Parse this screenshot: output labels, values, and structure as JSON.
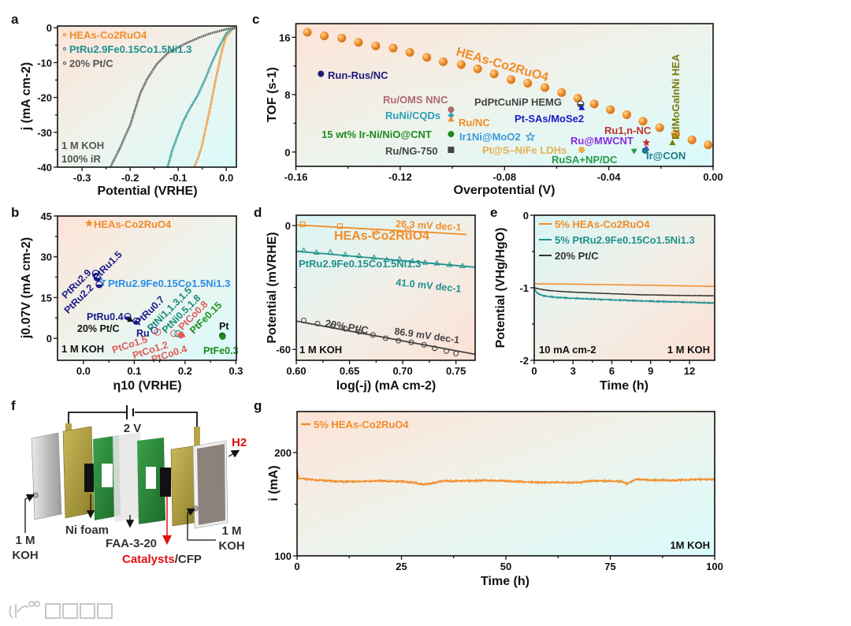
{
  "panel_labels": [
    "a",
    "b",
    "c",
    "d",
    "e",
    "f",
    "g"
  ],
  "chart_data": [
    {
      "id": "a",
      "type": "line",
      "title": "",
      "xlabel": "Potential (VRHE)",
      "ylabel": "j (mA cm-2)",
      "xlim": [
        -0.351,
        0.021
      ],
      "ylim": [
        -40,
        0.5
      ],
      "xticks": [
        -0.3,
        -0.2,
        -0.1,
        0.0
      ],
      "xtick_labels": [
        "-0.3",
        "-0.2",
        "-0.1",
        "0.0"
      ],
      "yticks": [
        0,
        -10,
        -20,
        -30,
        -40
      ],
      "ytick_labels": [
        "0",
        "-10",
        "-20",
        "-30",
        "-40"
      ],
      "legend": "top-left",
      "series": [
        {
          "name": "HEAs-Co2RuO4",
          "color": "#f28c28",
          "x": [
            0.018,
            0.01,
            0.0,
            -0.008,
            -0.016,
            -0.025,
            -0.035,
            -0.043,
            -0.051,
            -0.059,
            -0.067
          ],
          "y": [
            0,
            -0.8,
            -2.5,
            -6,
            -11,
            -17,
            -24,
            -29,
            -34,
            -37.5,
            -40
          ]
        },
        {
          "name": "PtRu2.9Fe0.15Co1.5Ni1.3",
          "color": "#1f9090",
          "x": [
            0.018,
            0.01,
            0.0,
            -0.016,
            -0.03,
            -0.044,
            -0.06,
            -0.078,
            -0.09,
            -0.1,
            -0.112,
            -0.122
          ],
          "y": [
            0,
            -0.5,
            -1.6,
            -5.8,
            -10,
            -14.8,
            -19.5,
            -23.7,
            -27,
            -30.5,
            -35,
            -40
          ]
        },
        {
          "name": "20% Pt/C",
          "color": "#555555",
          "x": [
            0.018,
            0.0,
            -0.013,
            -0.035,
            -0.056,
            -0.08,
            -0.1,
            -0.122,
            -0.145,
            -0.165,
            -0.178,
            -0.187,
            -0.2,
            -0.21,
            -0.22,
            -0.241
          ],
          "y": [
            0,
            -0.4,
            -0.9,
            -1.7,
            -2.8,
            -4.2,
            -5.6,
            -7.3,
            -10.5,
            -14.8,
            -18.5,
            -22.2,
            -28,
            -31,
            -34.2,
            -40
          ]
        }
      ],
      "annotations": [
        "1 M KOH",
        "100% iR"
      ]
    },
    {
      "id": "c",
      "type": "scatter",
      "title": "",
      "xlabel": "Overpotential (V)",
      "ylabel": "TOF (s-1)",
      "xlim": [
        -0.16,
        0.0
      ],
      "ylim": [
        -2,
        17.9
      ],
      "xticks": [
        -0.16,
        -0.12,
        -0.08,
        -0.04,
        0.0
      ],
      "xtick_labels": [
        "-0.16",
        "-0.12",
        "-0.08",
        "-0.04",
        "0.00"
      ],
      "yticks": [
        0,
        8,
        16
      ],
      "ytick_labels": [
        "0",
        "8",
        "16"
      ],
      "series": [
        {
          "name": "HEAs-Co2RuO4",
          "color": "#f28c28",
          "x": [
            -0.1556,
            -0.1491,
            -0.1424,
            -0.136,
            -0.1294,
            -0.1227,
            -0.1163,
            -0.1098,
            -0.1035,
            -0.0966,
            -0.0903,
            -0.084,
            -0.0775,
            -0.0711,
            -0.0645,
            -0.0581,
            -0.0519,
            -0.0456,
            -0.0394,
            -0.0331,
            -0.0269,
            -0.0205,
            -0.0144,
            -0.0081,
            -0.0019
          ],
          "y": [
            16.7,
            16.2,
            15.9,
            15.3,
            14.8,
            14.5,
            13.9,
            13.2,
            12.6,
            12.2,
            11.6,
            10.9,
            10.1,
            9.6,
            9.0,
            8.3,
            7.5,
            6.7,
            5.9,
            5.2,
            4.3,
            3.4,
            2.5,
            1.7,
            1.0
          ]
        }
      ],
      "points": [
        {
          "label": "Run-Rus/NC",
          "x": -0.1504,
          "y": 10.9,
          "color": "#1a1a7a",
          "marker": "circle"
        },
        {
          "label": "Ru/OMS NNC",
          "x": -0.1005,
          "y": 5.9,
          "color": "#b06a70",
          "marker": "circle"
        },
        {
          "label": "RuNi/CQDs",
          "x": -0.1005,
          "y": 5.1,
          "color": "#2aa0b8",
          "marker": "diamond"
        },
        {
          "label": "Ru/NC",
          "x": -0.1005,
          "y": 4.6,
          "color": "#f28c28",
          "marker": "triangle"
        },
        {
          "label": "15 wt% Ir-Ni/NiO@CNT",
          "x": -0.1005,
          "y": 2.5,
          "color": "#1e8a1e",
          "marker": "circle"
        },
        {
          "label": "Ru/NG-750",
          "x": -0.1005,
          "y": 0.3,
          "color": "#444444",
          "marker": "square"
        },
        {
          "label": "Ir1Ni@MoO2",
          "x": -0.0701,
          "y": 2.1,
          "color": "#3a9ad9",
          "marker": "star-open"
        },
        {
          "label": "PdPtCuNiP HEMG",
          "x": -0.0508,
          "y": 6.7,
          "color": "#444444",
          "marker": "half"
        },
        {
          "label": "Pt-SAs/MoSe2",
          "x": -0.0504,
          "y": 6.2,
          "color": "#1a1acc",
          "marker": "triangle"
        },
        {
          "label": "Pt@S–NiFe LDHs",
          "x": -0.0504,
          "y": 0.3,
          "color": "#e8b050",
          "marker": "circle"
        },
        {
          "label": "RuSA+NP/DC",
          "x": -0.0303,
          "y": 0.1,
          "color": "#2a9a4a",
          "marker": "triangle-down"
        },
        {
          "label": "Ru1,n-NC",
          "x": -0.0256,
          "y": 1.3,
          "color": "#c0302a",
          "marker": "star"
        },
        {
          "label": "Ru@MWCNT",
          "x": -0.0256,
          "y": 0.55,
          "color": "#8a2ae0",
          "marker": "triangle"
        },
        {
          "label": "Ir@CON",
          "x": -0.0261,
          "y": 0.2,
          "color": "#1a7a8a",
          "marker": "circle"
        },
        {
          "label": "PdMoGaInNi HEA",
          "x": -0.0156,
          "y": 1.3,
          "color": "#7a7a10",
          "marker": "triangle"
        }
      ]
    },
    {
      "id": "b",
      "type": "scatter",
      "title": "",
      "xlabel": "η10 (VRHE)",
      "ylabel": "j0.07V (mA cm-2)",
      "xlim": [
        -0.051,
        0.301
      ],
      "ylim": [
        -8.1,
        45
      ],
      "xticks": [
        0.0,
        0.1,
        0.2,
        0.3
      ],
      "xtick_labels": [
        "0.0",
        "0.1",
        "0.2",
        "0.3"
      ],
      "yticks": [
        0,
        15,
        30,
        45
      ],
      "ytick_labels": [
        "0",
        "15",
        "30",
        "45"
      ],
      "points": [
        {
          "label": "HEAs-Co2RuO4",
          "x": 0.011,
          "y": 42.3,
          "color": "#f28c28",
          "marker": "star"
        },
        {
          "label": "PtRu2.9Fe0.15Co1.5Ni1.3",
          "x": 0.035,
          "y": 20.8,
          "color": "#2a8ee8",
          "marker": "star-open"
        },
        {
          "label": "PtRu2.9",
          "x": 0.024,
          "y": 23.9,
          "color": "#1a1a8a",
          "marker": "half"
        },
        {
          "label": "PtRu1.5",
          "x": 0.027,
          "y": 22.3,
          "color": "#1a1a8a",
          "marker": "half"
        },
        {
          "label": "PtRu2.2",
          "x": 0.031,
          "y": 19.8,
          "color": "#1a1a8a",
          "marker": "half"
        },
        {
          "label": "PtRu0.4",
          "x": 0.087,
          "y": 8.0,
          "color": "#1a1a8a",
          "marker": "half"
        },
        {
          "label": "20% Pt/C",
          "x": 0.092,
          "y": 7.0,
          "color": "#111111",
          "marker": "triangle"
        },
        {
          "label": "PtRu0.7",
          "x": 0.104,
          "y": 6.3,
          "color": "#1a1a8a",
          "marker": "half"
        },
        {
          "label": "Ru",
          "x": 0.14,
          "y": 2.9,
          "color": "#1a1a8a",
          "marker": "open-circle"
        },
        {
          "label": "PtCo1.5",
          "x": 0.146,
          "y": 2.3,
          "color": "#e05a5a",
          "marker": "open-circle"
        },
        {
          "label": "PtCo1.2",
          "x": 0.178,
          "y": 1.8,
          "color": "#e05a5a",
          "marker": "open-circle"
        },
        {
          "label": "PtNi1,1.3,1.5",
          "x": 0.186,
          "y": 1.7,
          "color": "#1a8a7a",
          "marker": "open-circle"
        },
        {
          "label": "PtNi0.5,1.8",
          "x": 0.191,
          "y": 1.6,
          "color": "#1a8a7a",
          "marker": "triangle"
        },
        {
          "label": "PtCo0.8",
          "x": 0.195,
          "y": 1.4,
          "color": "#e05a5a",
          "marker": "triangle"
        },
        {
          "label": "PtCo0.4",
          "x": 0.192,
          "y": 1.1,
          "color": "#e05a5a",
          "marker": "circle"
        },
        {
          "label": "PtFe0.15",
          "x": 0.273,
          "y": 1.0,
          "color": "#1e8a1e",
          "marker": "circle"
        },
        {
          "label": "Pt",
          "x": 0.274,
          "y": 0.8,
          "color": "#111111",
          "marker": "circle"
        },
        {
          "label": "PtFe0.3",
          "x": 0.274,
          "y": 0.6,
          "color": "#1e8a1e",
          "marker": "circle"
        }
      ],
      "annotations": [
        "1 M KOH"
      ]
    },
    {
      "id": "d",
      "type": "line",
      "title": "",
      "xlabel": "log(-j) (mA cm-2)",
      "ylabel": "Potential (mVRHE)",
      "xlim": [
        0.6,
        0.768
      ],
      "ylim": [
        -65.3,
        5
      ],
      "xticks": [
        0.6,
        0.65,
        0.7,
        0.75
      ],
      "xtick_labels": [
        "0.60",
        "0.65",
        "0.70",
        "0.75"
      ],
      "yticks": [
        0,
        -60
      ],
      "ytick_labels": [
        "0",
        "-60"
      ],
      "series": [
        {
          "name": "HEAs-Co2RuO4",
          "color": "#f28c28",
          "marker": "open-square",
          "slope_label": "26.3 mV dec-1",
          "x": [
            0.606,
            0.641,
            0.674,
            0.705
          ],
          "y": [
            0.6,
            -0.3,
            -3.0,
            -2.6
          ],
          "fit": [
            [
              0.6,
              0.3
            ],
            [
              0.76,
              -4.3
            ]
          ]
        },
        {
          "name": "PtRu2.9Fe0.15Co1.5Ni1.3",
          "color": "#1f9090",
          "marker": "open-triangle",
          "slope_label": "41.0 mV dec-1",
          "x": [
            0.607,
            0.619,
            0.632,
            0.646,
            0.659,
            0.673,
            0.685,
            0.697,
            0.709,
            0.721,
            0.732,
            0.744,
            0.756
          ],
          "y": [
            -12.0,
            -13.0,
            -12.8,
            -14.0,
            -14.6,
            -15.4,
            -16.5,
            -16.2,
            -17.1,
            -17.8,
            -18.2,
            -18.9,
            -19.5
          ],
          "fit": [
            [
              0.6,
              -12.4
            ],
            [
              0.768,
              -20.2
            ]
          ]
        },
        {
          "name": "20% Pt/C",
          "color": "#444444",
          "marker": "open-circle",
          "slope_label": "86.9 mV dec-1",
          "x": [
            0.607,
            0.62,
            0.634,
            0.646,
            0.659,
            0.672,
            0.684,
            0.696,
            0.708,
            0.72,
            0.73,
            0.741,
            0.75
          ],
          "y": [
            -46.0,
            -47.5,
            -48.7,
            -50.0,
            -51.5,
            -53.0,
            -54.6,
            -55.8,
            -56.6,
            -57.8,
            -59.5,
            -60.8,
            -62.0
          ],
          "fit": [
            [
              0.6,
              -46.3
            ],
            [
              0.768,
              -62.4
            ]
          ]
        }
      ],
      "annotations": [
        "1 M KOH"
      ]
    },
    {
      "id": "e",
      "type": "line",
      "title": "",
      "xlabel": "Time (h)",
      "ylabel": "Potential (VHg/HgO)",
      "xlim": [
        0,
        13.95
      ],
      "ylim": [
        -2,
        0
      ],
      "xticks": [
        0,
        3,
        6,
        9,
        12
      ],
      "xtick_labels": [
        "0",
        "3",
        "6",
        "9",
        "12"
      ],
      "yticks": [
        0,
        -1,
        -2
      ],
      "ytick_labels": [
        "0",
        "-1",
        "-2"
      ],
      "legend": "top-left",
      "series": [
        {
          "name": "5% HEAs-Co2RuO4",
          "color": "#f28c28",
          "x": [
            0,
            3,
            6,
            9,
            12,
            13.9
          ],
          "y": [
            -0.945,
            -0.95,
            -0.958,
            -0.965,
            -0.975,
            -0.98
          ]
        },
        {
          "name": "5% PtRu2.9Fe0.15Co1.5Ni1.3",
          "color": "#1f9090",
          "x": [
            0,
            0.15,
            0.5,
            1,
            2,
            3,
            5,
            8,
            11,
            13.9
          ],
          "y": [
            -1.0,
            -1.06,
            -1.1,
            -1.12,
            -1.135,
            -1.145,
            -1.16,
            -1.18,
            -1.195,
            -1.21
          ]
        },
        {
          "name": "20% Pt/C",
          "color": "#333333",
          "x": [
            0,
            0.5,
            1,
            2,
            3,
            5,
            8,
            11,
            13.9
          ],
          "y": [
            -1.0,
            -1.02,
            -1.035,
            -1.05,
            -1.06,
            -1.075,
            -1.095,
            -1.105,
            -1.11
          ]
        }
      ],
      "annotations": [
        "10 mA cm-2",
        "1 M KOH"
      ]
    },
    {
      "id": "g",
      "type": "line",
      "title": "",
      "xlabel": "Time (h)",
      "ylabel": "i (mA)",
      "xlim": [
        0,
        100
      ],
      "ylim": [
        100,
        239.7
      ],
      "xticks": [
        0,
        25,
        50,
        75,
        100
      ],
      "xtick_labels": [
        "0",
        "25",
        "50",
        "75",
        "100"
      ],
      "yticks": [
        100,
        200
      ],
      "ytick_labels": [
        "100",
        "200"
      ],
      "legend": "top-left",
      "series": [
        {
          "name": "5% HEAs-Co2RuO4",
          "color": "#f28c28",
          "x": [
            0,
            0.3,
            2.5,
            5,
            10,
            15,
            20,
            25,
            28,
            30,
            32,
            35,
            40,
            45,
            50,
            55,
            60,
            65,
            68,
            70,
            75,
            78,
            79,
            81,
            85,
            90,
            95,
            100
          ],
          "y": [
            185,
            175,
            174,
            173.5,
            172,
            172,
            172.5,
            172,
            171,
            169,
            170,
            172.5,
            172.5,
            173,
            172.5,
            171.5,
            171,
            171,
            171,
            172.5,
            172.5,
            172,
            169.5,
            174,
            173.5,
            173,
            174,
            174
          ]
        }
      ],
      "annotations": [
        "1M KOH"
      ]
    }
  ],
  "diagram_f": {
    "voltage": "2 V",
    "gas": "H2",
    "left_electrolyte": [
      "1 M",
      "KOH"
    ],
    "ni_foam": "Ni foam",
    "membrane": "FAA-3-20",
    "catalysts": "Catalysts",
    "cfp": "/CFP",
    "right_electrolyte": [
      "1 M",
      "KOH"
    ]
  },
  "watermark": "大数跨境"
}
